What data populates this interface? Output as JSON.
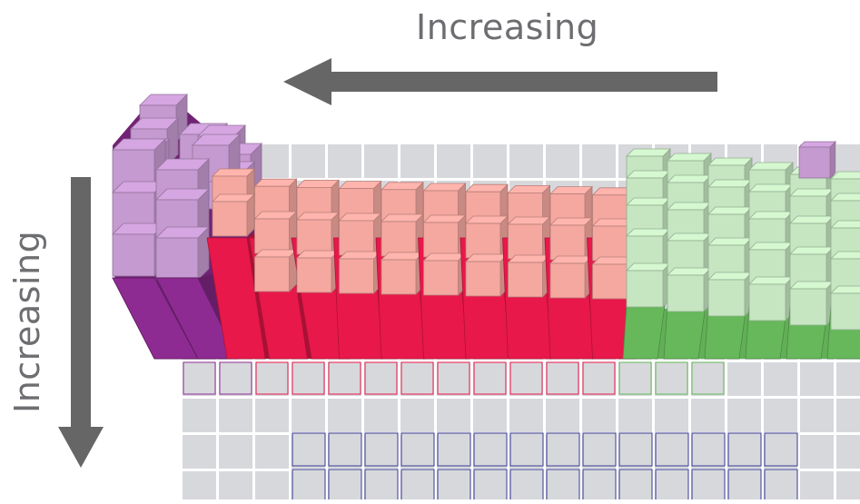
{
  "labels": {
    "horizontal": "Increasing",
    "vertical": "Increasing"
  },
  "arrows": {
    "horizontal": "arrow-left",
    "vertical": "arrow-down"
  },
  "colors": {
    "background_cell": "#d7d8dc",
    "s_block": "#8e2b92",
    "s_block_top": "#c59ad0",
    "d_block": "#e8184a",
    "d_block_top": "#f4a8a0",
    "p_block": "#66b85a",
    "p_block_top": "#c5e6c1",
    "f_block_outline": "#3a3a93",
    "arrow": "#666666",
    "text": "#6d6e71"
  }
}
